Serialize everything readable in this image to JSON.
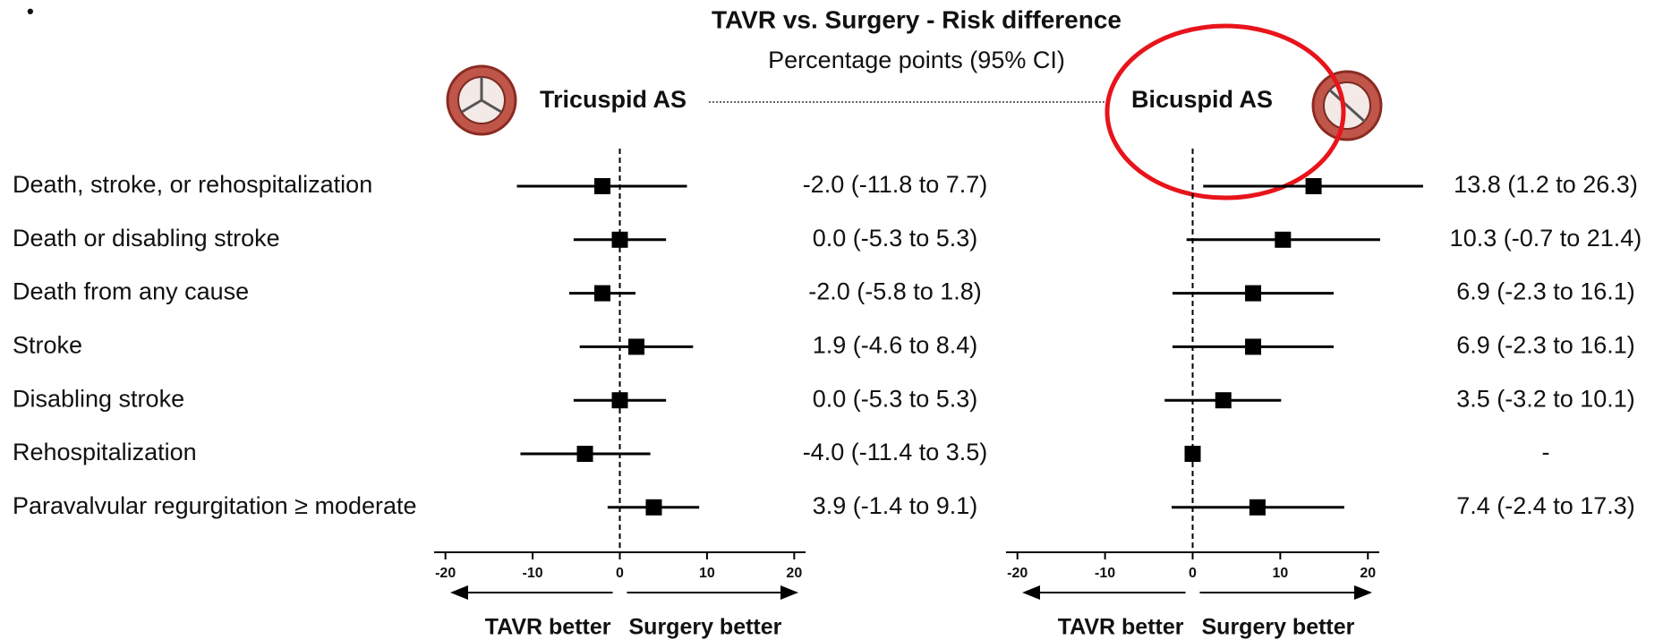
{
  "chart_data": {
    "type": "forest",
    "title": "TAVR vs. Surgery - Risk difference",
    "subtitle": "Percentage points (95% CI)",
    "categories": [
      "Death, stroke, or rehospitalization",
      "Death or disabling stroke",
      "Death from any cause",
      "Stroke",
      "Disabling stroke",
      "Rehospitalization",
      "Paravalvular regurgitation ≥ moderate"
    ],
    "xlim": [
      -21.3,
      21.3
    ],
    "xticks": [
      -20,
      -10,
      0,
      10,
      20
    ],
    "x_label_left": "TAVR better",
    "x_label_right": "Surgery better",
    "color": "#000000",
    "series": [
      {
        "name": "Tricuspid AS",
        "values": [
          -2.0,
          0.0,
          -2.0,
          1.9,
          0.0,
          -4.0,
          3.9
        ],
        "lower": [
          -11.8,
          -5.3,
          -5.8,
          -4.6,
          -5.3,
          -11.4,
          -1.4
        ],
        "upper": [
          7.7,
          5.3,
          1.8,
          8.4,
          5.3,
          3.5,
          9.1
        ],
        "value_labels": [
          "-2.0 (-11.8 to 7.7)",
          "0.0 (-5.3 to 5.3)",
          "-2.0 (-5.8 to 1.8)",
          "1.9 (-4.6 to 8.4)",
          "0.0 (-5.3 to 5.3)",
          "-4.0 (-11.4 to 3.5)",
          "3.9 (-1.4 to 9.1)"
        ]
      },
      {
        "name": "Bicuspid AS",
        "values": [
          13.8,
          10.3,
          6.9,
          6.9,
          3.5,
          0,
          7.4
        ],
        "lower": [
          1.2,
          -0.7,
          -2.3,
          -2.3,
          -3.2,
          null,
          -2.4
        ],
        "upper": [
          26.3,
          21.4,
          16.1,
          16.1,
          10.1,
          null,
          17.3
        ],
        "value_labels": [
          "13.8 (1.2 to 26.3)",
          "10.3 (-0.7 to 21.4)",
          "6.9 (-2.3 to 16.1)",
          "6.9 (-2.3 to 16.1)",
          "3.5 (-3.2 to 10.1)",
          "-",
          "7.4 (-2.4 to 17.3)"
        ]
      }
    ]
  }
}
